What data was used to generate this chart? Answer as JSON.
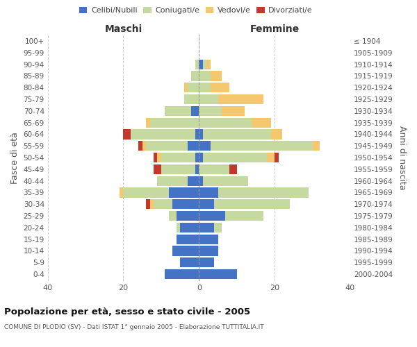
{
  "age_groups": [
    "0-4",
    "5-9",
    "10-14",
    "15-19",
    "20-24",
    "25-29",
    "30-34",
    "35-39",
    "40-44",
    "45-49",
    "50-54",
    "55-59",
    "60-64",
    "65-69",
    "70-74",
    "75-79",
    "80-84",
    "85-89",
    "90-94",
    "95-99",
    "100+"
  ],
  "birth_years": [
    "2000-2004",
    "1995-1999",
    "1990-1994",
    "1985-1989",
    "1980-1984",
    "1975-1979",
    "1970-1974",
    "1965-1969",
    "1960-1964",
    "1955-1959",
    "1950-1954",
    "1945-1949",
    "1940-1944",
    "1935-1939",
    "1930-1934",
    "1925-1929",
    "1920-1924",
    "1915-1919",
    "1910-1914",
    "1905-1909",
    "≤ 1904"
  ],
  "maschi": {
    "celibi": [
      9,
      5,
      7,
      6,
      5,
      6,
      7,
      8,
      3,
      1,
      1,
      3,
      1,
      0,
      2,
      0,
      0,
      0,
      0,
      0,
      0
    ],
    "coniugati": [
      0,
      0,
      0,
      0,
      1,
      2,
      5,
      12,
      8,
      9,
      9,
      11,
      17,
      13,
      7,
      4,
      3,
      2,
      1,
      0,
      0
    ],
    "vedovi": [
      0,
      0,
      0,
      0,
      0,
      0,
      1,
      1,
      0,
      0,
      1,
      1,
      0,
      1,
      0,
      0,
      1,
      0,
      0,
      0,
      0
    ],
    "divorziati": [
      0,
      0,
      0,
      0,
      0,
      0,
      1,
      0,
      0,
      2,
      1,
      1,
      2,
      0,
      0,
      0,
      0,
      0,
      0,
      0,
      0
    ]
  },
  "femmine": {
    "nubili": [
      10,
      4,
      5,
      5,
      4,
      7,
      4,
      5,
      1,
      0,
      1,
      3,
      1,
      0,
      0,
      0,
      0,
      0,
      1,
      0,
      0
    ],
    "coniugate": [
      0,
      0,
      0,
      0,
      2,
      10,
      20,
      24,
      12,
      8,
      17,
      27,
      18,
      14,
      6,
      5,
      3,
      3,
      1,
      0,
      0
    ],
    "vedove": [
      0,
      0,
      0,
      0,
      0,
      0,
      0,
      0,
      0,
      0,
      2,
      2,
      3,
      5,
      6,
      12,
      5,
      3,
      1,
      0,
      0
    ],
    "divorziate": [
      0,
      0,
      0,
      0,
      0,
      0,
      0,
      0,
      0,
      2,
      1,
      0,
      0,
      0,
      0,
      0,
      0,
      0,
      0,
      0,
      0
    ]
  },
  "colors": {
    "celibi_nubili": "#4472c4",
    "coniugati": "#c5d9a0",
    "vedovi": "#f5c76e",
    "divorziati": "#c0392b"
  },
  "xlim": 40,
  "title": "Popolazione per età, sesso e stato civile - 2005",
  "subtitle": "COMUNE DI PLODIO (SV) - Dati ISTAT 1° gennaio 2005 - Elaborazione TUTTITALIA.IT",
  "ylabel_left": "Fasce di età",
  "ylabel_right": "Anni di nascita",
  "xlabel_left": "Maschi",
  "xlabel_right": "Femmine"
}
